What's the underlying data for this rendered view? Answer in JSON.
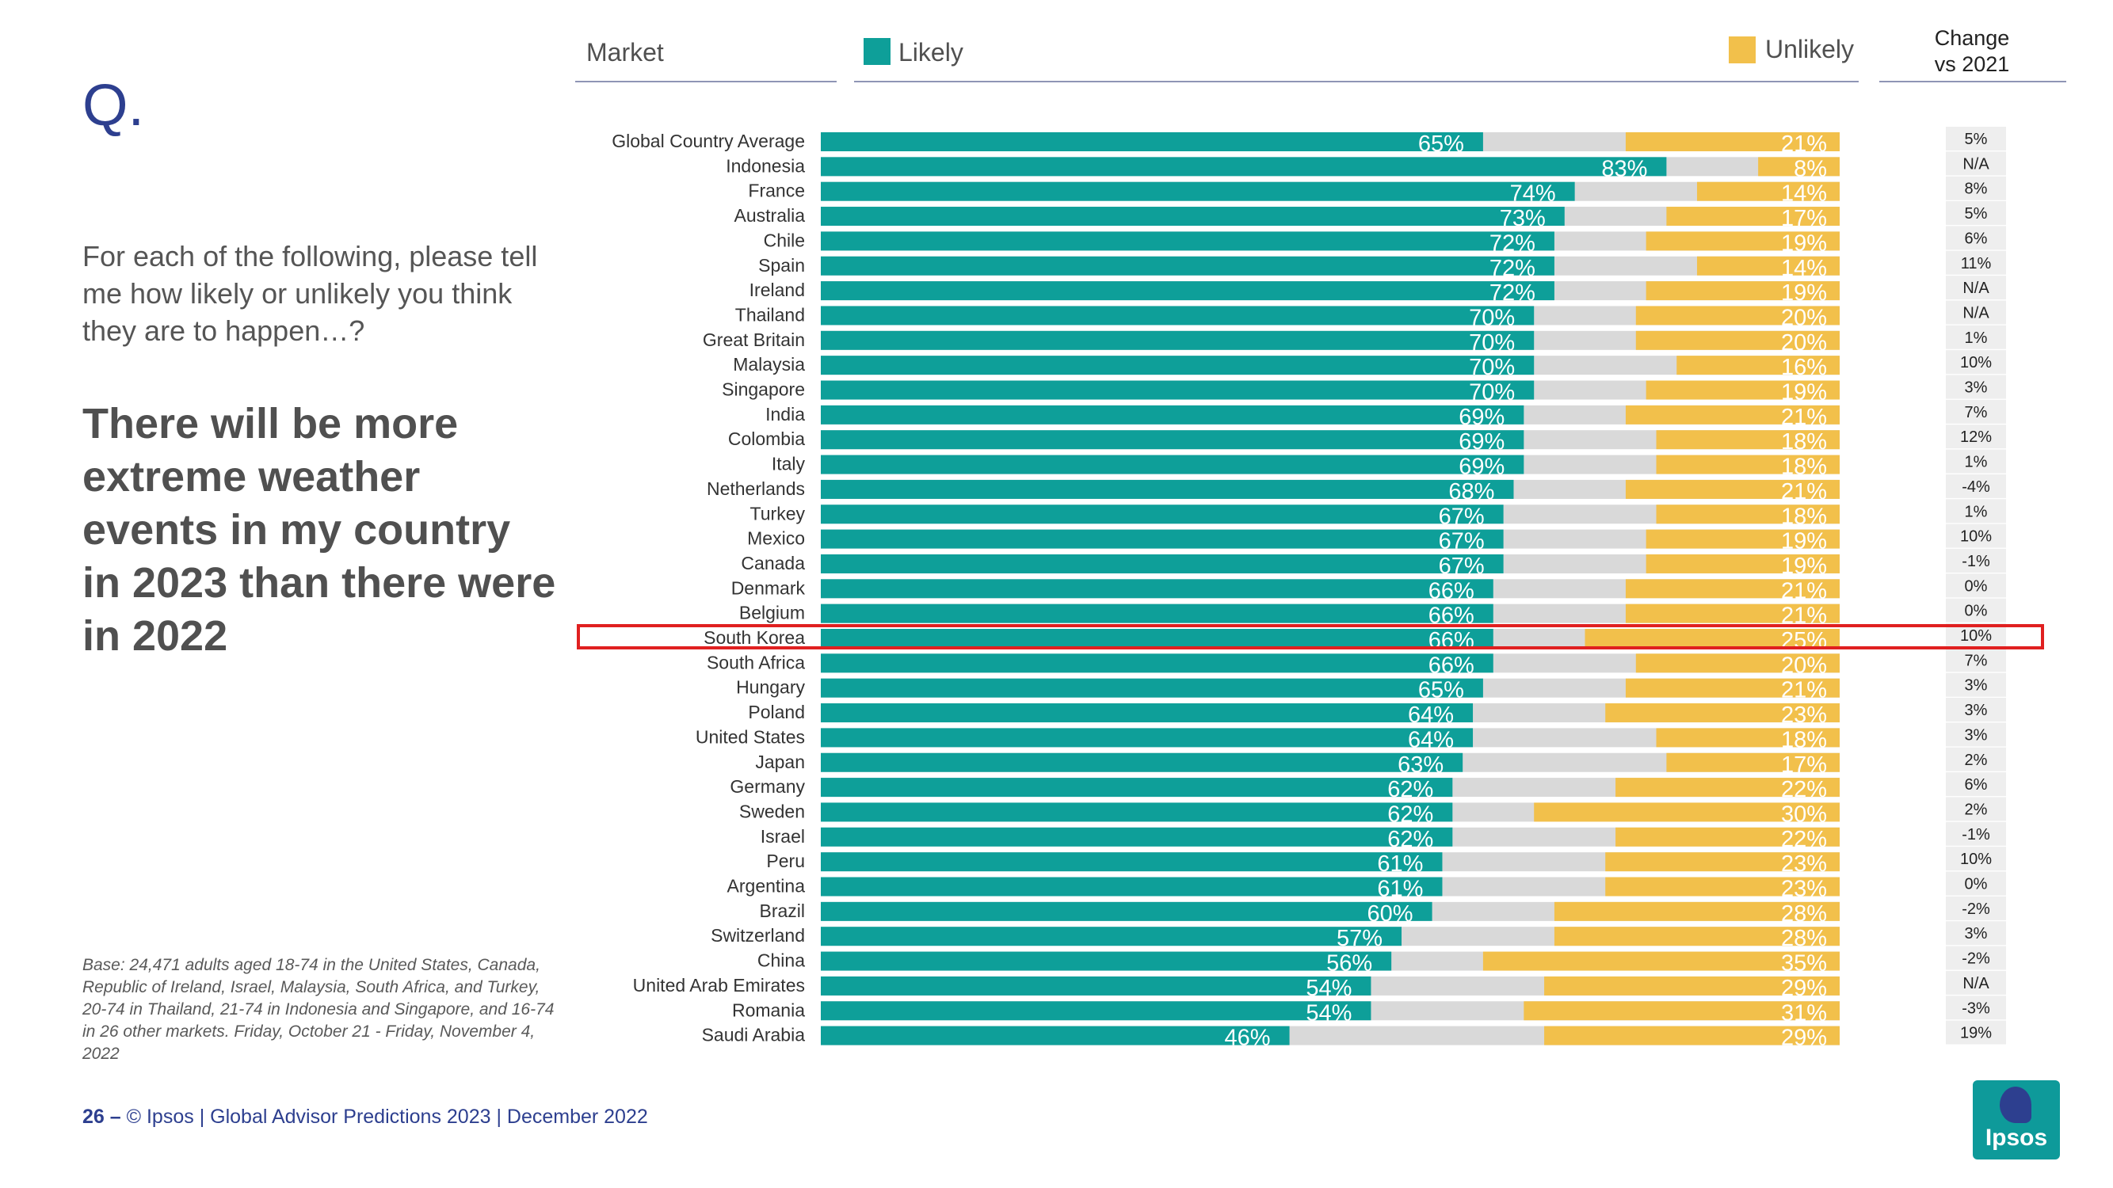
{
  "header": {
    "market_label": "Market",
    "likely_label": "Likely",
    "unlikely_label": "Unlikely",
    "change_line1": "Change",
    "change_line2": "vs 2021"
  },
  "left_panel": {
    "q_label": "Q.",
    "question": "For each of the following, please tell me how likely or unlikely you think they are to happen…?",
    "statement": "There will be more extreme weather events in my country in 2023 than there were in 2022",
    "base_note": "Base: 24,471 adults aged 18-74 in the United States, Canada, Republic of Ireland, Israel, Malaysia, South Africa, and Turkey, 20-74 in Thailand, 21-74 in Indonesia and Singapore, and 16-74 in 26 other markets. Friday, October 21 -  Friday, November 4, 2022"
  },
  "footer": {
    "page_number": "26 –",
    "text": "© Ipsos | Global Advisor Predictions 2023 | December 2022"
  },
  "logo": {
    "text": "Ipsos"
  },
  "colors": {
    "likely": "#0e9f99",
    "unlikely": "#f2c04b",
    "neutral": "#d9d9d9",
    "highlight": "#e02020",
    "title_blue": "#2d3f8f"
  },
  "highlighted_market": "South Korea",
  "chart_data": {
    "type": "bar",
    "orientation": "horizontal",
    "stacked": true,
    "title": "There will be more extreme weather events in my country in 2023 than there were in 2022",
    "xlim": [
      0,
      100
    ],
    "legend": [
      "Likely",
      "Unlikely"
    ],
    "categories": [
      "Global Country Average",
      "Indonesia",
      "France",
      "Australia",
      "Chile",
      "Spain",
      "Ireland",
      "Thailand",
      "Great Britain",
      "Malaysia",
      "Singapore",
      "India",
      "Colombia",
      "Italy",
      "Netherlands",
      "Turkey",
      "Mexico",
      "Canada",
      "Denmark",
      "Belgium",
      "South Korea",
      "South Africa",
      "Hungary",
      "Poland",
      "United States",
      "Japan",
      "Germany",
      "Sweden",
      "Israel",
      "Peru",
      "Argentina",
      "Brazil",
      "Switzerland",
      "China",
      "United Arab Emirates",
      "Romania",
      "Saudi Arabia"
    ],
    "series": [
      {
        "name": "Likely",
        "values": [
          65,
          83,
          74,
          73,
          72,
          72,
          72,
          70,
          70,
          70,
          70,
          69,
          69,
          69,
          68,
          67,
          67,
          67,
          66,
          66,
          66,
          66,
          65,
          64,
          64,
          63,
          62,
          62,
          62,
          61,
          61,
          60,
          57,
          56,
          54,
          54,
          46
        ]
      },
      {
        "name": "Unlikely",
        "values": [
          21,
          8,
          14,
          17,
          19,
          14,
          19,
          20,
          20,
          16,
          19,
          21,
          18,
          18,
          21,
          18,
          19,
          19,
          21,
          21,
          25,
          20,
          21,
          23,
          18,
          17,
          22,
          30,
          22,
          23,
          23,
          28,
          28,
          35,
          29,
          31,
          29
        ]
      }
    ],
    "change_vs_2021": [
      "5%",
      "N/A",
      "8%",
      "5%",
      "6%",
      "11%",
      "N/A",
      "N/A",
      "1%",
      "10%",
      "3%",
      "7%",
      "12%",
      "1%",
      "-4%",
      "1%",
      "10%",
      "-1%",
      "0%",
      "0%",
      "10%",
      "7%",
      "3%",
      "3%",
      "3%",
      "2%",
      "6%",
      "2%",
      "-1%",
      "10%",
      "0%",
      "-2%",
      "3%",
      "-2%",
      "N/A",
      "-3%",
      "19%"
    ]
  }
}
